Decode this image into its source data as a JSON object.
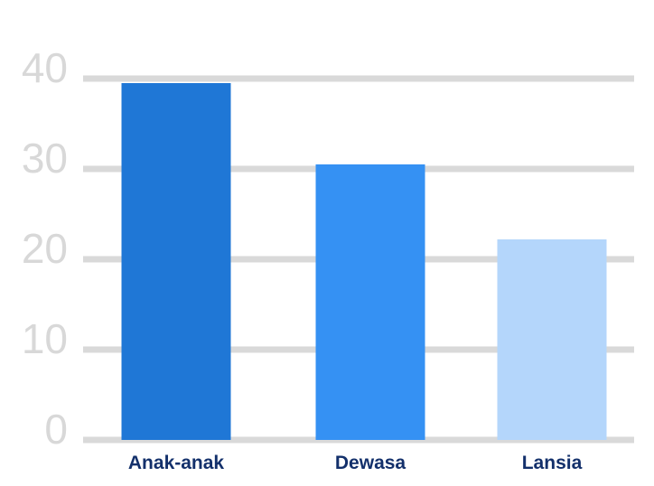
{
  "chart_data": {
    "type": "bar",
    "title": "",
    "xlabel": "",
    "ylabel": "",
    "ylim": [
      0,
      40
    ],
    "yticks": [
      0,
      10,
      20,
      30,
      40
    ],
    "grid": true,
    "categories": [
      "Anak-anak",
      "Dewasa",
      "Lansia"
    ],
    "values": [
      39.5,
      30.5,
      22.2
    ],
    "colors": [
      "#1f77d6",
      "#3591f3",
      "#b4d6fb"
    ],
    "grid_color": "#d9d9d9",
    "tick_color": "#d8d8d8",
    "label_color": "#13306b"
  }
}
